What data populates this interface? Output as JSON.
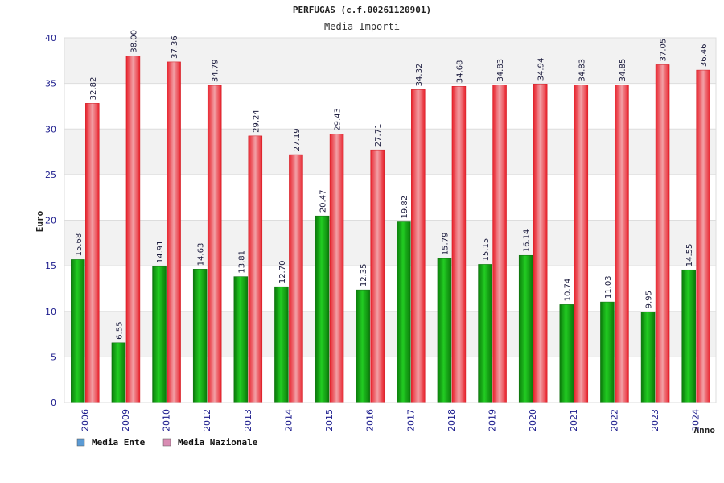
{
  "chart_data": {
    "type": "bar",
    "title": "PERFUGAS (c.f.00261120901)",
    "subtitle": "Media Importi",
    "xlabel": "Anno",
    "ylabel": "Euro",
    "ylim": [
      0,
      40
    ],
    "yticks": [
      0,
      5,
      10,
      15,
      20,
      25,
      30,
      35,
      40
    ],
    "grid": true,
    "legend_position": "bottom-left",
    "categories": [
      "2006",
      "2009",
      "2010",
      "2012",
      "2013",
      "2014",
      "2015",
      "2016",
      "2017",
      "2018",
      "2019",
      "2020",
      "2021",
      "2022",
      "2023",
      "2024"
    ],
    "series": [
      {
        "name": "Media Ente",
        "legend_color": "#5b9bd5",
        "color": "#11aa11",
        "values": [
          15.68,
          6.55,
          14.91,
          14.63,
          13.81,
          12.7,
          20.47,
          12.35,
          19.82,
          15.79,
          15.15,
          16.14,
          10.74,
          11.03,
          9.95,
          14.55
        ],
        "labels": [
          "15.68",
          "6.55",
          "14.91",
          "14.63",
          "13.81",
          "12.70",
          "20.47",
          "12.35",
          "19.82",
          "15.79",
          "15.15",
          "16.14",
          "10.74",
          "11.03",
          "9.95",
          "14.55"
        ]
      },
      {
        "name": "Media Nazionale",
        "legend_color": "#d98cb3",
        "color": "#e8202a",
        "values": [
          32.82,
          38.0,
          37.36,
          34.79,
          29.24,
          27.19,
          29.43,
          27.71,
          34.32,
          34.68,
          34.83,
          34.94,
          34.83,
          34.85,
          37.05,
          36.46
        ],
        "labels": [
          "32.82",
          "38.00",
          "37.36",
          "34.79",
          "29.24",
          "27.19",
          "29.43",
          "27.71",
          "34.32",
          "34.68",
          "34.83",
          "34.94",
          "34.83",
          "34.85",
          "37.05",
          "36.46"
        ]
      }
    ]
  }
}
